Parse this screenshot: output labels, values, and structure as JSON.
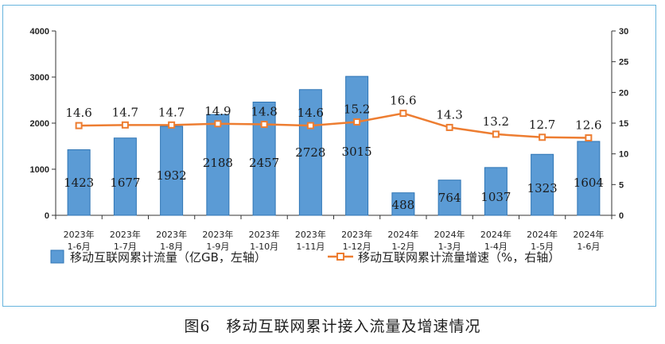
{
  "chart_data": {
    "type": "bar",
    "categories": [
      [
        "2023年",
        "1-6月"
      ],
      [
        "2023年",
        "1-7月"
      ],
      [
        "2023年",
        "1-8月"
      ],
      [
        "2023年",
        "1-9月"
      ],
      [
        "2023年",
        "1-10月"
      ],
      [
        "2023年",
        "1-11月"
      ],
      [
        "2023年",
        "1-12月"
      ],
      [
        "2024年",
        "1-2月"
      ],
      [
        "2024年",
        "1-3月"
      ],
      [
        "2024年",
        "1-4月"
      ],
      [
        "2024年",
        "1-5月"
      ],
      [
        "2024年",
        "1-6月"
      ]
    ],
    "series": [
      {
        "name": "移动互联网累计流量（亿GB，左轴）",
        "type": "bar",
        "axis": "left",
        "values": [
          1423,
          1677,
          1932,
          2188,
          2457,
          2728,
          3015,
          488,
          764,
          1037,
          1323,
          1604
        ],
        "color": "#5b9bd5"
      },
      {
        "name": "移动互联网累计流量增速（%，右轴）",
        "type": "line",
        "axis": "right",
        "values": [
          14.6,
          14.7,
          14.7,
          14.9,
          14.8,
          14.6,
          15.2,
          16.6,
          14.3,
          13.2,
          12.7,
          12.6
        ],
        "color": "#ed7d31"
      }
    ],
    "y_left": {
      "min": 0,
      "max": 4000,
      "ticks": [
        "0",
        "1000",
        "2000",
        "3000",
        "4000"
      ]
    },
    "y_right": {
      "min": 0,
      "max": 30,
      "ticks": [
        "0",
        "5",
        "10",
        "15",
        "20",
        "25",
        "30"
      ]
    },
    "grid": false,
    "legend_position": "bottom"
  },
  "caption": "图6　移动互联网累计接入流量及增速情况"
}
